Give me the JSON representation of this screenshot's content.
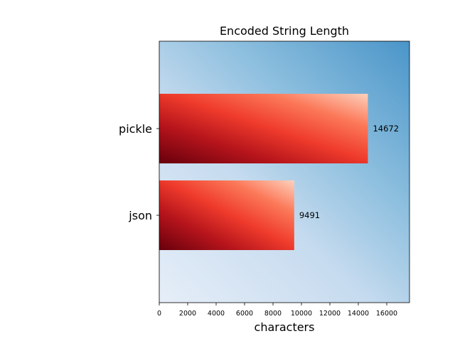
{
  "chart_data": {
    "type": "bar",
    "orientation": "horizontal",
    "title": "Encoded String Length",
    "xlabel": "characters",
    "ylabel": "",
    "categories": [
      "pickle",
      "json"
    ],
    "values": [
      14672,
      9491
    ],
    "value_labels": [
      "14672",
      "9491"
    ],
    "xlim": [
      0,
      17600
    ],
    "x_ticks": [
      0,
      2000,
      4000,
      6000,
      8000,
      10000,
      12000,
      14000,
      16000
    ],
    "x_tick_labels": [
      "0",
      "2000",
      "4000",
      "6000",
      "8000",
      "10000",
      "12000",
      "14000",
      "16000"
    ],
    "grid": false,
    "legend": false,
    "colors": {
      "background_gradient": "Blues",
      "bar_gradient": "Reds",
      "value_label": "#ff0000"
    }
  }
}
